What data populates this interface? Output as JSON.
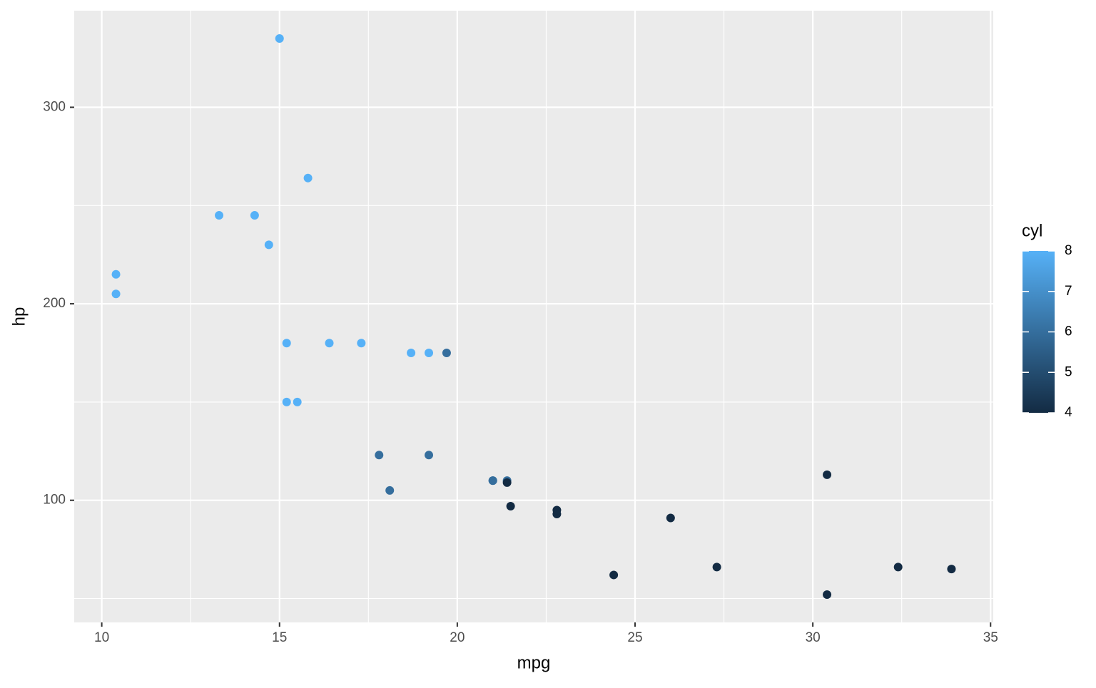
{
  "chart_data": {
    "type": "scatter",
    "x_label": "mpg",
    "y_label": "hp",
    "x": [
      21.0,
      21.0,
      22.8,
      21.4,
      18.7,
      18.1,
      14.3,
      24.4,
      22.8,
      19.2,
      17.8,
      16.4,
      17.3,
      15.2,
      10.4,
      10.4,
      14.7,
      32.4,
      30.4,
      33.9,
      21.5,
      15.5,
      15.2,
      13.3,
      19.2,
      27.3,
      26.0,
      30.4,
      15.8,
      19.7,
      15.0,
      21.4
    ],
    "y": [
      110,
      110,
      93,
      110,
      175,
      105,
      245,
      62,
      95,
      123,
      123,
      180,
      180,
      180,
      205,
      215,
      230,
      66,
      52,
      65,
      97,
      150,
      150,
      245,
      175,
      66,
      91,
      113,
      264,
      175,
      335,
      109
    ],
    "cyl": [
      6,
      6,
      4,
      6,
      8,
      6,
      8,
      4,
      4,
      6,
      6,
      8,
      8,
      8,
      8,
      8,
      8,
      4,
      4,
      4,
      4,
      8,
      8,
      8,
      8,
      4,
      4,
      4,
      8,
      6,
      8,
      4
    ],
    "xlim": [
      9.225,
      35.075
    ],
    "ylim": [
      37.85,
      349.15
    ],
    "xticks": [
      10,
      15,
      20,
      25,
      30,
      35
    ],
    "yticks": [
      100,
      200,
      300
    ],
    "x_minor_grid": [
      12.5,
      17.5,
      22.5,
      27.5,
      32.5
    ],
    "y_minor_grid": [
      50,
      150,
      250
    ],
    "grid": true,
    "colorscale": {
      "title": "cyl",
      "low": "#132B43",
      "high": "#56B1F7",
      "lim": [
        4,
        8
      ],
      "ticks": [
        4,
        5,
        6,
        7,
        8
      ]
    }
  }
}
